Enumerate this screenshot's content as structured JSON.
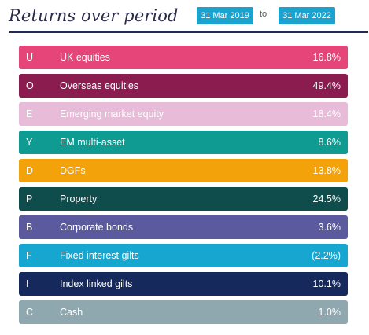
{
  "header": {
    "title": "Returns over period",
    "date_from": "31 Mar 2019",
    "to_label": "to",
    "date_to": "31 Mar 2022"
  },
  "rows": [
    {
      "code": "U",
      "label": "UK equities",
      "value": "16.8%",
      "color": "#e6457a"
    },
    {
      "code": "O",
      "label": "Overseas equities",
      "value": "49.4%",
      "color": "#8a1c50"
    },
    {
      "code": "E",
      "label": "Emerging market equity",
      "value": "18.4%",
      "color": "#e8bcd9"
    },
    {
      "code": "Y",
      "label": "EM multi-asset",
      "value": "8.6%",
      "color": "#0f9a92"
    },
    {
      "code": "D",
      "label": "DGFs",
      "value": "13.8%",
      "color": "#f4a20a"
    },
    {
      "code": "P",
      "label": "Property",
      "value": "24.5%",
      "color": "#0e4d4c"
    },
    {
      "code": "B",
      "label": "Corporate bonds",
      "value": "3.6%",
      "color": "#5b5a9e"
    },
    {
      "code": "F",
      "label": "Fixed interest gilts",
      "value": "(2.2%)",
      "color": "#16a6cf"
    },
    {
      "code": "I",
      "label": "Index linked gilts",
      "value": "10.1%",
      "color": "#16295c"
    },
    {
      "code": "C",
      "label": "Cash",
      "value": "1.0%",
      "color": "#8fa7ae"
    }
  ]
}
